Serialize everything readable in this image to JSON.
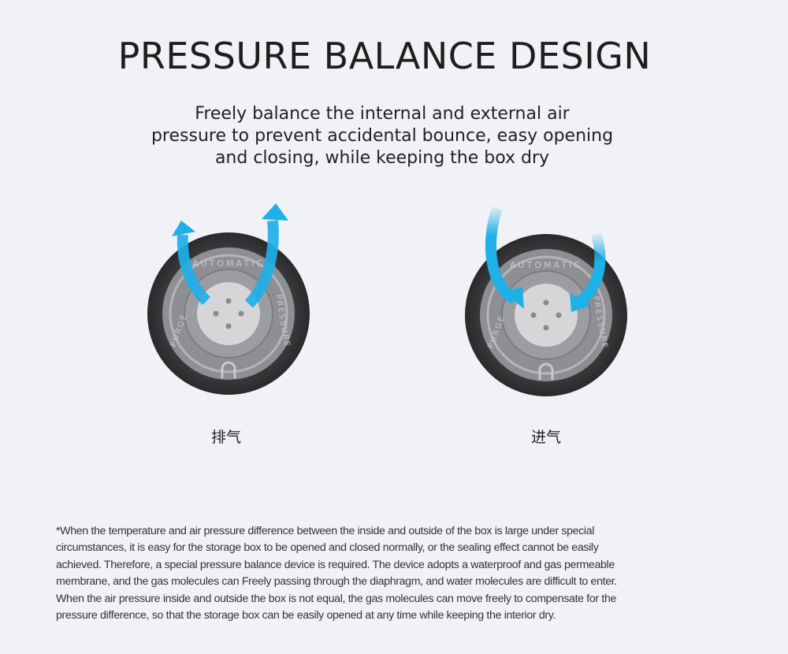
{
  "title": "PRESSURE BALANCE DESIGN",
  "subtitle_lines": [
    "Freely balance the internal and external air",
    "pressure to prevent accidental bounce, easy opening",
    "and closing, while keeping the box dry"
  ],
  "valves": [
    {
      "label": "排气",
      "direction": "exhaust",
      "ring_text_top": "AUTOMATIC",
      "ring_text_right": "PRESSURE",
      "ring_text_left": "PURGE"
    },
    {
      "label": "进气",
      "direction": "intake",
      "ring_text_top": "AUTOMATIC",
      "ring_text_right": "PRESSURE",
      "ring_text_left": "PURGE"
    }
  ],
  "colors": {
    "arrow": "#1fb0e8",
    "background": "#f1f2f6",
    "valve_rim": "#2a2a2c"
  },
  "footnote_lines": [
    "*When the temperature and air pressure difference between the inside and outside of the box is large under special",
    "circumstances, it is easy for the storage box to be opened and closed normally, or the sealing effect cannot be easily",
    "achieved. Therefore, a special pressure balance device is required. The device adopts a waterproof and gas permeable",
    "membrane, and the gas molecules can Freely passing through the diaphragm, and water molecules are difficult to enter.",
    "When the air pressure inside and outside the box is not equal, the gas molecules can move freely to compensate for the",
    "pressure difference, so that the storage box can be easily opened at any time while keeping the interior dry."
  ]
}
